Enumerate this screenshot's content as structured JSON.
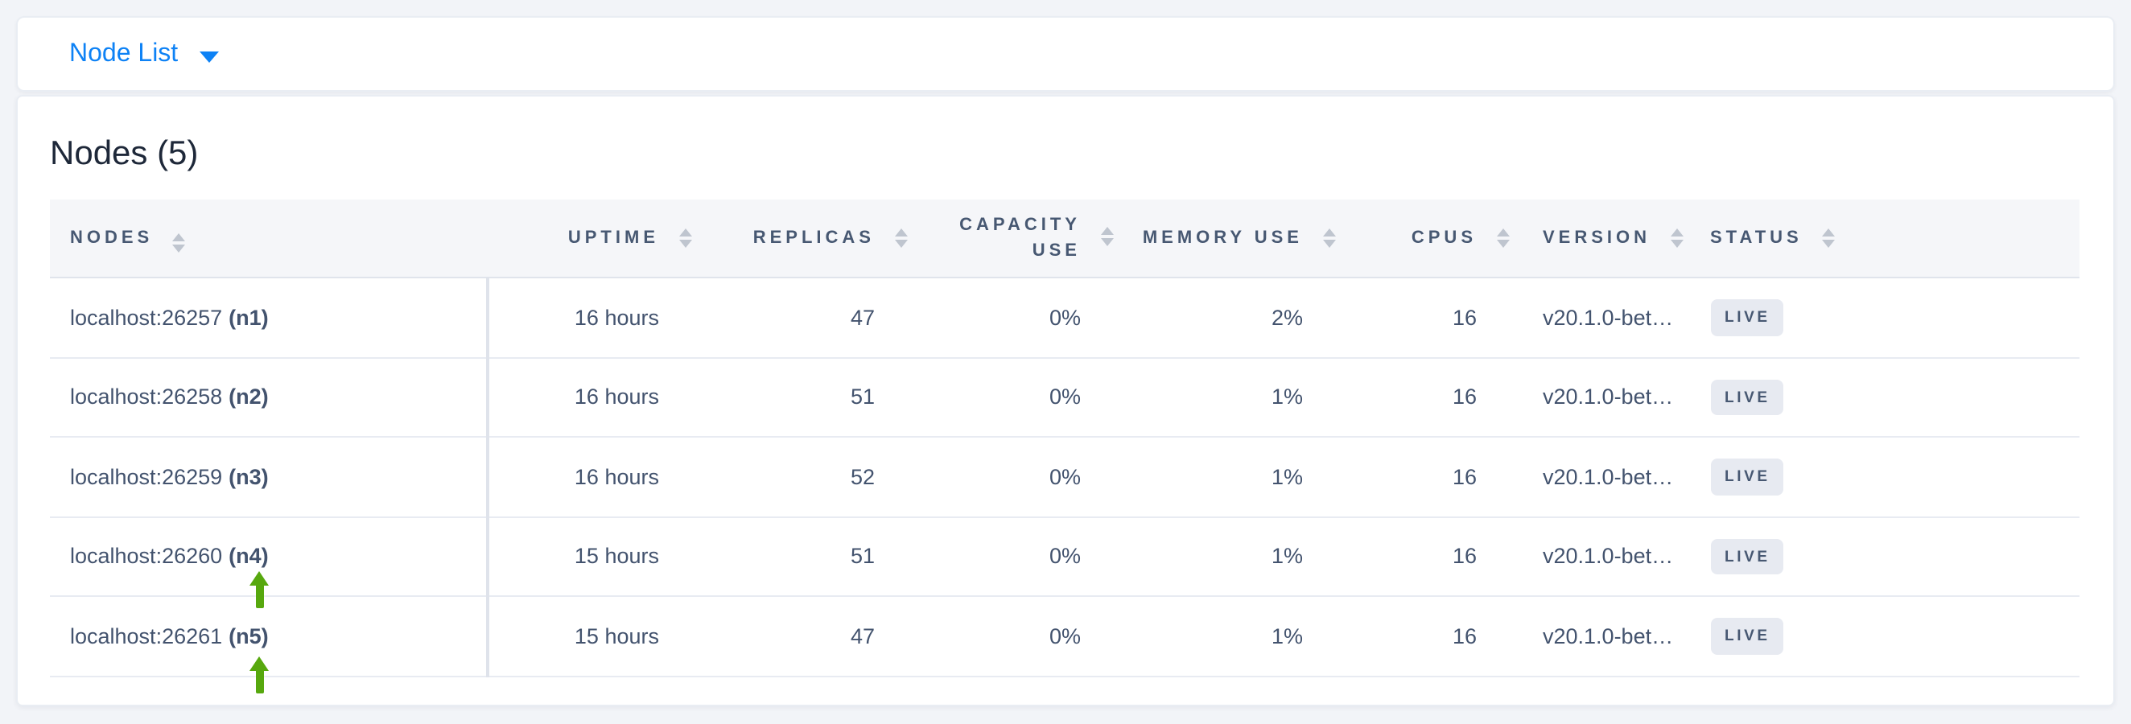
{
  "topbar": {
    "dropdown_label": "Node List"
  },
  "page": {
    "title": "Nodes (5)"
  },
  "table": {
    "columns": [
      {
        "label": "NODES"
      },
      {
        "label": "UPTIME"
      },
      {
        "label": "REPLICAS"
      },
      {
        "label": "CAPACITY USE"
      },
      {
        "label": "MEMORY USE"
      },
      {
        "label": "CPUS"
      },
      {
        "label": "VERSION"
      },
      {
        "label": "STATUS"
      }
    ],
    "rows": [
      {
        "address": "localhost:26257",
        "name": "(n1)",
        "uptime": "16 hours",
        "replicas": "47",
        "capacity_use": "0%",
        "memory_use": "2%",
        "cpus": "16",
        "version": "v20.1.0-bet…",
        "status": "LIVE"
      },
      {
        "address": "localhost:26258",
        "name": "(n2)",
        "uptime": "16 hours",
        "replicas": "51",
        "capacity_use": "0%",
        "memory_use": "1%",
        "cpus": "16",
        "version": "v20.1.0-bet…",
        "status": "LIVE"
      },
      {
        "address": "localhost:26259",
        "name": "(n3)",
        "uptime": "16 hours",
        "replicas": "52",
        "capacity_use": "0%",
        "memory_use": "1%",
        "cpus": "16",
        "version": "v20.1.0-bet…",
        "status": "LIVE"
      },
      {
        "address": "localhost:26260",
        "name": "(n4)",
        "uptime": "15 hours",
        "replicas": "51",
        "capacity_use": "0%",
        "memory_use": "1%",
        "cpus": "16",
        "version": "v20.1.0-bet…",
        "status": "LIVE",
        "annotation": "green-up-arrow"
      },
      {
        "address": "localhost:26261",
        "name": "(n5)",
        "uptime": "15 hours",
        "replicas": "47",
        "capacity_use": "0%",
        "memory_use": "1%",
        "cpus": "16",
        "version": "v20.1.0-bet…",
        "status": "LIVE",
        "annotation": "green-up-arrow"
      }
    ]
  },
  "colors": {
    "accent_blue": "#0e82f5",
    "arrow_green": "#57a80e",
    "badge_bg": "#e7eaf1",
    "header_text": "#475872",
    "page_bg": "#f2f4f8"
  }
}
